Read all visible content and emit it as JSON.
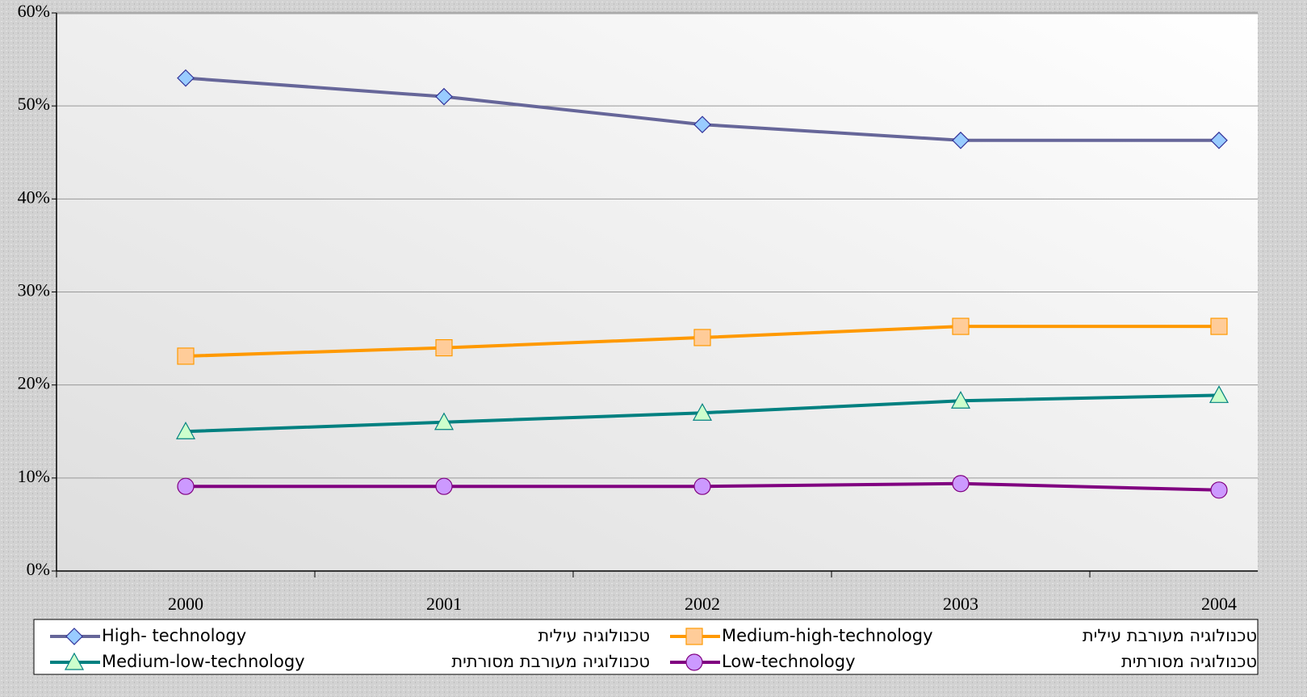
{
  "chart_data": {
    "type": "line",
    "categories": [
      "2000",
      "2001",
      "2002",
      "2003",
      "2004"
    ],
    "ylim": [
      0,
      60
    ],
    "yticks": [
      {
        "value": 0,
        "label": "0%"
      },
      {
        "value": 10,
        "label": "10%"
      },
      {
        "value": 20,
        "label": "20%"
      },
      {
        "value": 30,
        "label": "30%"
      },
      {
        "value": 40,
        "label": "40%"
      },
      {
        "value": 50,
        "label": "50%"
      },
      {
        "value": 60,
        "label": "60%"
      }
    ],
    "grid": true,
    "legend": "bottom",
    "series": [
      {
        "name": "High- technology",
        "hebrew_name": "טכנולוגיה עילית",
        "color": "#666699",
        "marker": "diamond",
        "marker_fill": "#99ccff",
        "marker_stroke": "#333399",
        "values": [
          53,
          51,
          48,
          46.3,
          46.3
        ]
      },
      {
        "name": "Medium-high-technology",
        "hebrew_name": "טכנולוגיה מעורבת עילית",
        "color": "#ff9900",
        "marker": "square",
        "marker_fill": "#ffcc99",
        "marker_stroke": "#ff9900",
        "values": [
          23.1,
          24,
          25.1,
          26.3,
          26.3
        ]
      },
      {
        "name": "Medium-low-technology",
        "hebrew_name": "טכנולוגיה מעורבת מסורתית",
        "color": "#008080",
        "marker": "triangle",
        "marker_fill": "#ccffcc",
        "marker_stroke": "#008080",
        "values": [
          15,
          16,
          17,
          18.3,
          18.9
        ]
      },
      {
        "name": "Low-technology",
        "hebrew_name": "טכנולוגיה מסורתית",
        "color": "#800080",
        "marker": "circle",
        "marker_fill": "#cc99ff",
        "marker_stroke": "#800080",
        "values": [
          9.1,
          9.1,
          9.1,
          9.4,
          8.7
        ]
      }
    ]
  }
}
